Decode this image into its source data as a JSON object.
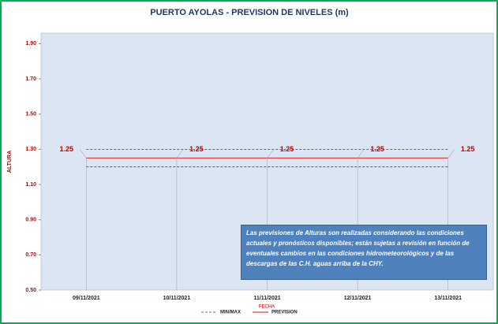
{
  "chart_data": {
    "type": "line",
    "title": "PUERTO AYOLAS - PREVISION DE NIVELES (m)",
    "x_label": "FECHA",
    "y_label": "ALTURA",
    "categories": [
      "09/11/2021",
      "10/11/2021",
      "11/11/2021",
      "12/11/2021",
      "13/11/2021"
    ],
    "series": [
      {
        "name": "MIN/MAX",
        "color": "#404040",
        "dashed": true,
        "values": [
          1.3,
          1.3,
          1.3,
          1.3,
          1.3
        ],
        "lower": [
          1.2,
          1.2,
          1.2,
          1.2,
          1.2
        ]
      },
      {
        "name": "PREVISION",
        "color": "#e04040",
        "values": [
          1.25,
          1.25,
          1.25,
          1.25,
          1.25
        ],
        "labels": true
      }
    ],
    "ylim": [
      0.5,
      1.96
    ],
    "yticks": [
      {
        "value": 0.5,
        "label": "0.50"
      },
      {
        "value": 0.7,
        "label": "0.70"
      },
      {
        "value": 0.9,
        "label": "0.90"
      },
      {
        "value": 1.1,
        "label": "1.10"
      },
      {
        "value": 1.3,
        "label": "1.30"
      },
      {
        "value": 1.5,
        "label": "1.50"
      },
      {
        "value": 1.7,
        "label": "1.70"
      },
      {
        "value": 1.9,
        "label": "1.90"
      }
    ],
    "note": "Las previsiones de Alturas son realizadas considerando las condiciones actuales y pronósticos disponibles;  están sujetas a revisión en función de eventuales cambios en las condiciones hidrometeorológicos y de las descargas de las C.H. aguas arriba de la CHY."
  }
}
